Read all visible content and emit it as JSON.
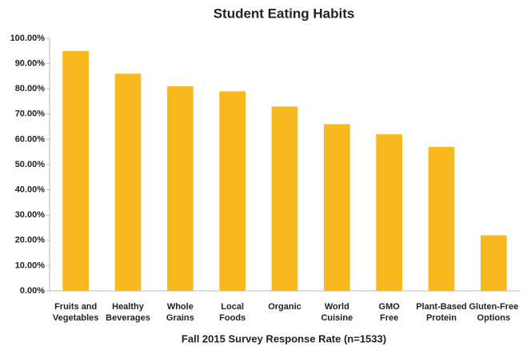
{
  "chart_data": {
    "type": "bar",
    "title": "Student Eating Habits",
    "x_label": "Fall 2015 Survey Response Rate (n=1533)",
    "categories": [
      "Fruits and\nVegetables",
      "Healthy\nBeverages",
      "Whole\nGrains",
      "Local\nFoods",
      "Organic",
      "World\nCuisine",
      "GMO\nFree",
      "Plant-Based\nProtein",
      "Gluten-Free\nOptions"
    ],
    "values": [
      95,
      86,
      81,
      79,
      73,
      66,
      62,
      57,
      22
    ],
    "color": "#f9b81d",
    "ylim": [
      0,
      100
    ],
    "yticks": [
      {
        "value": 0,
        "label": "0.00%"
      },
      {
        "value": 10,
        "label": "10.00%"
      },
      {
        "value": 20,
        "label": "20.00%"
      },
      {
        "value": 30,
        "label": "30.00%"
      },
      {
        "value": 40,
        "label": "40.00%"
      },
      {
        "value": 50,
        "label": "50.00%"
      },
      {
        "value": 60,
        "label": "60.00%"
      },
      {
        "value": 70,
        "label": "70.00%"
      },
      {
        "value": 80,
        "label": "80.00%"
      },
      {
        "value": 90,
        "label": "90.00%"
      },
      {
        "value": 100,
        "label": "100.00%"
      }
    ],
    "grid": false
  }
}
